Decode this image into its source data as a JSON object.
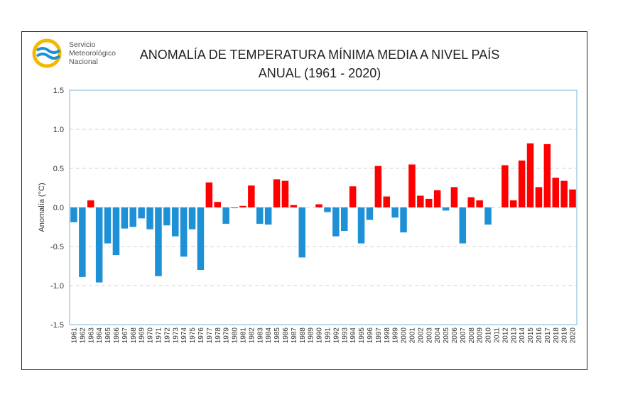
{
  "branding": {
    "logo_lines": [
      "Servicio",
      "Meteorológico",
      "Nacional"
    ],
    "logo_colors": {
      "ring": "#f5b800",
      "waves": "#1e90d6"
    }
  },
  "chart_data": {
    "type": "bar",
    "title_lines": [
      "ANOMALÍA DE TEMPERATURA MÍNIMA MEDIA A NIVEL PAÍS",
      "ANUAL (1961 - 2020)"
    ],
    "xlabel": "",
    "ylabel": "Anomalía (°C)",
    "ylim": [
      -1.5,
      1.5
    ],
    "yticks": [
      1.5,
      1.0,
      0.5,
      0.0,
      -0.5,
      -1.0,
      -1.5
    ],
    "ytick_labels": [
      "1.5",
      "1.0",
      "0.5",
      "0.0",
      "-0.5",
      "-1.0",
      "-1.5"
    ],
    "grid": "horizontal-dashed",
    "colors": {
      "negative": "#1e90d6",
      "positive": "#ff0000",
      "plot_border": "#7eb6d6",
      "grid": "#d0d0d0"
    },
    "categories": [
      "1961",
      "1962",
      "1963",
      "1964",
      "1965",
      "1966",
      "1967",
      "1968",
      "1969",
      "1970",
      "1971",
      "1972",
      "1973",
      "1974",
      "1975",
      "1976",
      "1977",
      "1978",
      "1979",
      "1980",
      "1981",
      "1982",
      "1983",
      "1984",
      "1985",
      "1986",
      "1987",
      "1988",
      "1989",
      "1990",
      "1991",
      "1992",
      "1993",
      "1994",
      "1995",
      "1996",
      "1997",
      "1998",
      "1999",
      "2000",
      "2001",
      "2002",
      "2003",
      "2004",
      "2005",
      "2006",
      "2007",
      "2008",
      "2009",
      "2010",
      "2011",
      "2012",
      "2013",
      "2014",
      "2015",
      "2016",
      "2017",
      "2018",
      "2019",
      "2020"
    ],
    "values": [
      -0.19,
      -0.89,
      0.09,
      -0.96,
      -0.46,
      -0.61,
      -0.27,
      -0.25,
      -0.14,
      -0.28,
      -0.88,
      -0.23,
      -0.37,
      -0.63,
      -0.28,
      -0.8,
      0.32,
      0.07,
      -0.21,
      -0.01,
      0.02,
      0.28,
      -0.21,
      -0.22,
      0.36,
      0.34,
      0.03,
      -0.64,
      0.0,
      0.04,
      -0.06,
      -0.37,
      -0.3,
      0.27,
      -0.46,
      -0.16,
      0.53,
      0.14,
      -0.13,
      -0.32,
      0.55,
      0.15,
      0.11,
      0.22,
      -0.04,
      0.26,
      -0.46,
      0.13,
      0.09,
      -0.22,
      0.0,
      0.54,
      0.09,
      0.6,
      0.82,
      0.26,
      0.81,
      0.38,
      0.34,
      0.23
    ]
  }
}
